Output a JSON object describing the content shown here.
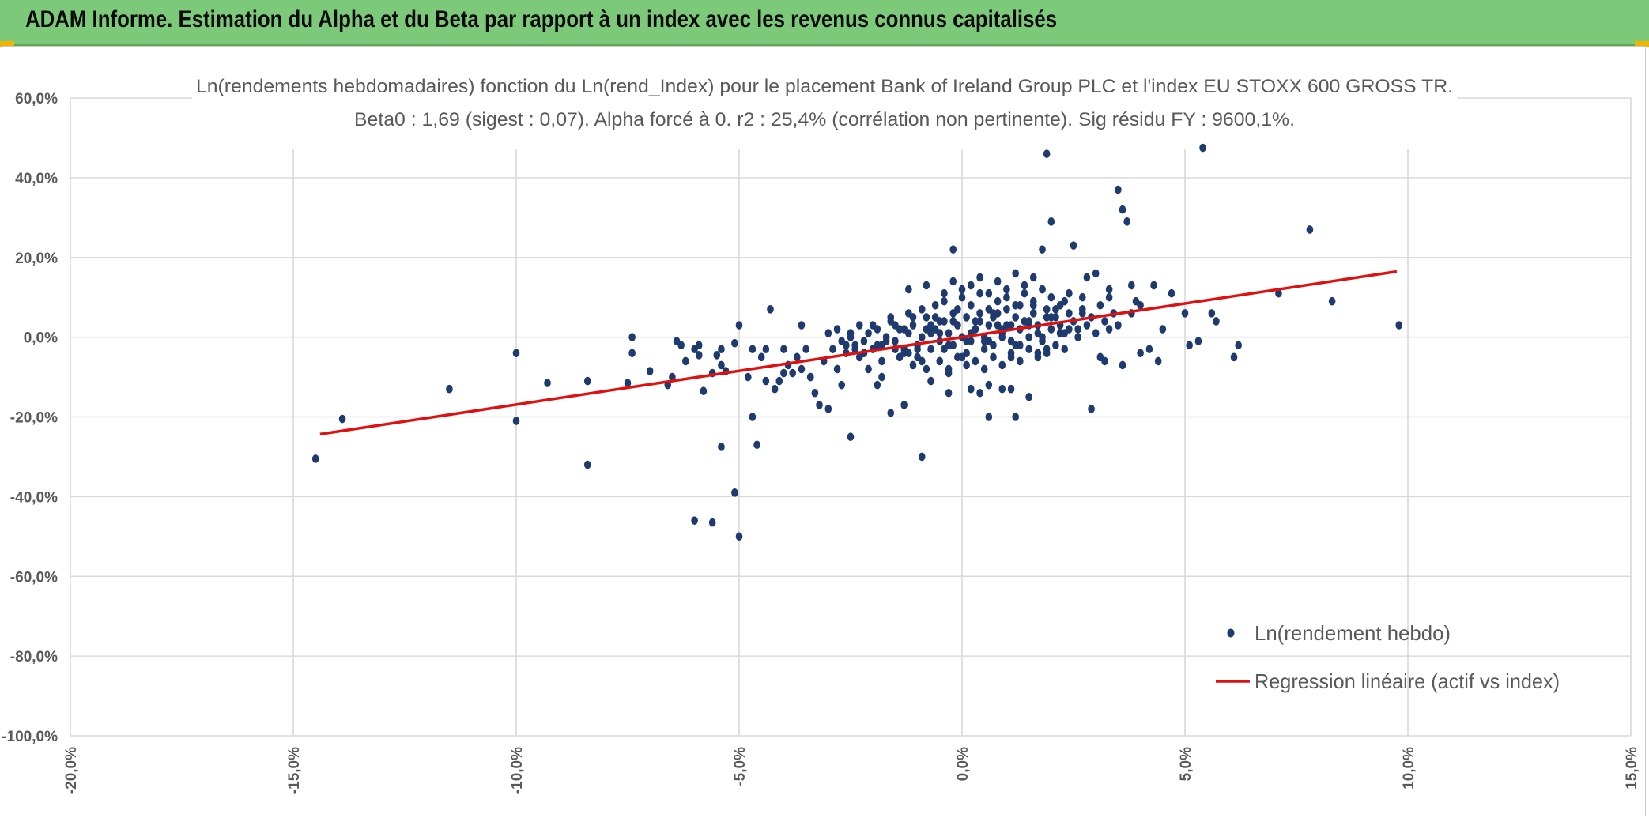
{
  "header": {
    "title": "ADAM Informe. Estimation du Alpha et du Beta par rapport à un index avec les revenus connus capitalisés"
  },
  "colors": {
    "header_bg": "#7dc97a",
    "points": "#1f3a6e",
    "regression": "#e01010",
    "grid": "#d9d9d9",
    "text": "#595959"
  },
  "chart_data": {
    "type": "scatter",
    "title": "Ln(rendements hebdomadaires) fonction du Ln(rend_Index) pour le placement Bank of Ireland Group PLC et l'index EU STOXX 600 GROSS TR.",
    "subtitle": "Beta0 : 1,69 (sigest : 0,07). Alpha forcé à 0. r2 : 25,4% (corrélation non pertinente). Sig résidu FY : 9600,1%.",
    "xlabel": "",
    "ylabel": "",
    "xlim": [
      -0.2,
      0.15
    ],
    "ylim": [
      -1.0,
      0.6
    ],
    "x_ticks": [
      "-20,0%",
      "-15,0%",
      "-10,0%",
      "-5,0%",
      "0,0%",
      "5,0%",
      "10,0%",
      "15,0%"
    ],
    "y_ticks": [
      "60,0%",
      "40,0%",
      "20,0%",
      "0,0%",
      "-20,0%",
      "-40,0%",
      "-60,0%",
      "-80,0%",
      "-100,0%"
    ],
    "grid": true,
    "legend_position": "bottom-right",
    "series": [
      {
        "name": "Ln(rendement hebdo)",
        "kind": "scatter",
        "x": [
          -0.145,
          -0.139,
          -0.115,
          -0.1,
          -0.1,
          -0.093,
          -0.084,
          -0.084,
          -0.075,
          -0.074,
          -0.074,
          -0.07,
          -0.066,
          -0.065,
          -0.064,
          -0.063,
          -0.062,
          -0.06,
          -0.06,
          -0.059,
          -0.059,
          -0.058,
          -0.056,
          -0.056,
          -0.055,
          -0.054,
          -0.054,
          -0.054,
          -0.053,
          -0.051,
          -0.051,
          -0.05,
          -0.05,
          -0.048,
          -0.047,
          -0.047,
          -0.046,
          -0.045,
          -0.044,
          -0.043,
          -0.042,
          -0.041,
          -0.04,
          -0.039,
          -0.038,
          -0.037,
          -0.036,
          -0.035,
          -0.034,
          -0.033,
          -0.032,
          -0.03,
          -0.028,
          -0.027,
          -0.026,
          -0.025,
          -0.024,
          -0.021,
          -0.019,
          -0.018,
          -0.016,
          -0.015,
          -0.013,
          -0.01,
          -0.009,
          -0.002,
          0.004,
          0.006,
          0.009,
          0.012,
          0.018,
          0.019,
          0.02,
          0.025,
          0.026,
          0.028,
          0.029,
          0.03,
          0.032,
          0.033,
          0.035,
          0.036,
          0.037,
          0.038,
          0.038,
          0.04,
          0.042,
          0.043,
          0.045,
          0.047,
          0.05,
          0.051,
          0.053,
          0.054,
          0.056,
          0.057,
          0.061,
          0.062,
          0.071,
          0.078,
          0.083,
          0.098,
          -0.03,
          -0.029,
          -0.028,
          -0.027,
          -0.026,
          -0.025,
          -0.024,
          -0.023,
          -0.022,
          -0.021,
          -0.02,
          -0.019,
          -0.018,
          -0.017,
          -0.016,
          -0.015,
          -0.014,
          -0.013,
          -0.012,
          -0.011,
          -0.01,
          -0.009,
          -0.008,
          -0.007,
          -0.006,
          -0.005,
          -0.004,
          -0.003,
          -0.002,
          -0.001,
          0.0,
          0.001,
          0.002,
          0.003,
          0.004,
          0.005,
          0.006,
          0.007,
          0.008,
          0.009,
          0.01,
          0.011,
          0.012,
          0.013,
          0.014,
          0.015,
          0.016,
          0.017,
          0.018,
          0.019,
          0.02,
          0.021,
          0.022,
          0.023,
          0.024,
          0.025,
          0.026,
          0.027,
          0.028,
          0.029,
          0.03,
          0.031,
          0.032,
          0.033,
          0.034,
          0.035,
          -0.022,
          -0.018,
          -0.014,
          -0.011,
          -0.008,
          -0.005,
          -0.003,
          -0.001,
          0.001,
          0.003,
          0.005,
          0.007,
          0.009,
          0.011,
          0.013,
          0.015,
          0.017,
          0.019,
          0.021,
          0.023,
          -0.02,
          -0.016,
          -0.012,
          -0.009,
          -0.006,
          -0.004,
          -0.002,
          0.0,
          0.002,
          0.004,
          0.006,
          0.008,
          0.01,
          0.012,
          0.014,
          0.016,
          0.018,
          0.02,
          0.022,
          0.024,
          -0.017,
          -0.013,
          -0.01,
          -0.007,
          -0.005,
          -0.003,
          -0.001,
          0.001,
          0.003,
          0.005,
          0.007,
          0.009,
          0.011,
          0.013,
          0.015,
          0.017,
          0.019,
          0.021,
          0.024,
          0.027,
          -0.025,
          -0.019,
          -0.015,
          -0.012,
          -0.008,
          -0.006,
          -0.004,
          -0.002,
          0.0,
          0.002,
          0.004,
          0.006,
          0.008,
          0.01,
          0.012,
          0.014,
          0.016,
          0.018,
          0.02,
          0.023,
          -0.023,
          -0.017,
          -0.013,
          -0.011,
          -0.009,
          -0.007,
          -0.005,
          -0.003,
          -0.001,
          0.001,
          0.003,
          0.005,
          0.007,
          0.009,
          0.011,
          0.013,
          0.015,
          0.017,
          0.019,
          0.022,
          -0.012,
          -0.008,
          -0.004,
          -0.002,
          0.0,
          0.002,
          0.004,
          0.006,
          0.008,
          0.01,
          0.012,
          0.014,
          0.016,
          0.018,
          0.006,
          0.002,
          -0.003,
          -0.007,
          0.011,
          0.015,
          -0.036,
          -0.031,
          0.031,
          0.036,
          0.04,
          0.044,
          -0.044,
          -0.04,
          -0.034,
          0.027,
          0.033,
          0.039
        ],
        "y": [
          -0.305,
          -0.205,
          -0.13,
          -0.21,
          -0.04,
          -0.115,
          -0.11,
          -0.32,
          -0.115,
          0.0,
          -0.04,
          -0.085,
          -0.12,
          -0.1,
          -0.01,
          -0.02,
          -0.06,
          -0.03,
          -0.46,
          -0.02,
          -0.045,
          -0.135,
          -0.09,
          -0.465,
          -0.045,
          -0.275,
          -0.07,
          -0.03,
          -0.085,
          -0.39,
          -0.015,
          -0.5,
          0.03,
          -0.1,
          -0.2,
          -0.03,
          -0.27,
          -0.05,
          -0.03,
          0.07,
          -0.13,
          -0.11,
          -0.03,
          -0.07,
          -0.09,
          -0.05,
          0.03,
          -0.03,
          -0.1,
          -0.14,
          -0.17,
          -0.18,
          -0.08,
          -0.12,
          -0.02,
          -0.25,
          -0.03,
          -0.08,
          -0.12,
          -0.1,
          -0.19,
          -0.03,
          -0.17,
          -0.05,
          -0.3,
          0.22,
          -0.14,
          -0.2,
          -0.13,
          -0.2,
          0.22,
          0.46,
          0.29,
          0.23,
          0.02,
          0.15,
          -0.18,
          0.16,
          -0.06,
          0.1,
          0.37,
          0.32,
          0.29,
          0.06,
          0.13,
          0.08,
          -0.03,
          0.13,
          0.02,
          0.11,
          0.06,
          -0.02,
          -0.01,
          0.475,
          0.06,
          0.04,
          -0.05,
          -0.02,
          0.11,
          0.27,
          0.09,
          0.03,
          0.01,
          -0.03,
          0.02,
          -0.01,
          -0.04,
          0.0,
          -0.02,
          0.03,
          -0.01,
          0.01,
          -0.03,
          0.02,
          -0.02,
          0.0,
          0.04,
          -0.01,
          0.02,
          -0.04,
          0.01,
          0.03,
          -0.02,
          0.0,
          0.05,
          -0.03,
          0.02,
          -0.01,
          0.04,
          0.01,
          -0.02,
          0.03,
          0.0,
          0.05,
          -0.01,
          0.02,
          0.04,
          0.0,
          0.03,
          -0.02,
          0.06,
          0.01,
          0.03,
          -0.01,
          0.05,
          0.02,
          0.04,
          0.0,
          0.06,
          0.03,
          -0.01,
          0.05,
          0.02,
          0.07,
          0.03,
          0.01,
          0.06,
          0.04,
          0.0,
          0.07,
          0.03,
          0.05,
          0.01,
          0.08,
          0.04,
          0.02,
          0.06,
          0.03,
          -0.04,
          -0.06,
          -0.05,
          -0.07,
          -0.08,
          -0.06,
          -0.09,
          -0.05,
          -0.07,
          -0.06,
          -0.08,
          -0.05,
          -0.07,
          -0.04,
          -0.06,
          -0.03,
          -0.05,
          -0.04,
          -0.02,
          -0.03,
          0.03,
          0.05,
          0.06,
          0.07,
          0.08,
          0.09,
          0.06,
          0.1,
          0.08,
          0.11,
          0.07,
          0.09,
          0.1,
          0.08,
          0.11,
          0.09,
          0.12,
          0.1,
          0.08,
          0.11,
          -0.01,
          0.02,
          -0.03,
          0.01,
          0.04,
          -0.02,
          0.03,
          -0.04,
          0.02,
          -0.01,
          0.05,
          0.0,
          0.03,
          -0.02,
          0.04,
          0.01,
          -0.03,
          0.05,
          0.02,
          0.06,
          0.01,
          -0.02,
          0.03,
          -0.04,
          0.02,
          0.05,
          -0.03,
          0.04,
          -0.05,
          0.01,
          0.06,
          -0.01,
          0.03,
          0.07,
          -0.02,
          0.04,
          0.08,
          0.0,
          0.05,
          0.09,
          -0.05,
          0.0,
          -0.03,
          0.05,
          -0.06,
          0.03,
          0.01,
          -0.08,
          0.07,
          -0.01,
          0.04,
          -0.03,
          0.06,
          0.02,
          -0.05,
          0.08,
          0.03,
          -0.04,
          0.07,
          0.01,
          0.12,
          0.13,
          0.11,
          0.14,
          0.12,
          0.13,
          0.15,
          0.11,
          0.14,
          0.12,
          0.16,
          0.13,
          0.15,
          0.12,
          -0.12,
          -0.13,
          -0.14,
          -0.11,
          -0.13,
          -0.15,
          -0.08,
          -0.06,
          -0.05,
          -0.07,
          -0.04,
          -0.06,
          -0.11,
          -0.09,
          -0.1,
          0.1,
          0.12,
          0.09
        ]
      },
      {
        "name": "Regression linéaire (actif vs index)",
        "kind": "line",
        "beta": 1.69,
        "alpha": 0,
        "x_range": [
          -0.144,
          0.0975
        ]
      }
    ]
  }
}
